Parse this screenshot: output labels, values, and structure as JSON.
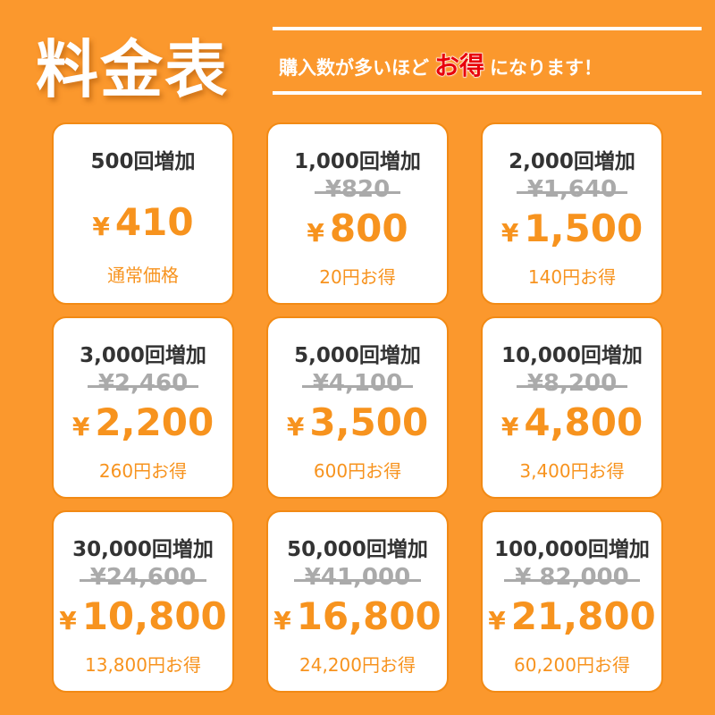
{
  "header": {
    "title": "料金表",
    "tagline_before": "購入数が多いほど",
    "tagline_highlight": "お得",
    "tagline_after": "になります！"
  },
  "colors": {
    "background": "#fb982d",
    "accent": "#f7931e",
    "highlight": "#e8000a",
    "strike": "#aaaaaa"
  },
  "plans": [
    {
      "qty": "500回増加",
      "old": "",
      "yen": "¥",
      "price": "410",
      "save": "通常価格"
    },
    {
      "qty": "1,000回増加",
      "old": "¥820",
      "yen": "¥",
      "price": "800",
      "save": "20円お得"
    },
    {
      "qty": "2,000回増加",
      "old": "¥1,640",
      "yen": "¥",
      "price": "1,500",
      "save": "140円お得"
    },
    {
      "qty": "3,000回増加",
      "old": "¥2,460",
      "yen": "¥",
      "price": "2,200",
      "save": "260円お得"
    },
    {
      "qty": "5,000回増加",
      "old": "¥4,100",
      "yen": "¥",
      "price": "3,500",
      "save": "600円お得"
    },
    {
      "qty": "10,000回増加",
      "old": "¥8,200",
      "yen": "¥",
      "price": "4,800",
      "save": "3,400円お得"
    },
    {
      "qty": "30,000回増加",
      "old": "¥24,600",
      "yen": "¥",
      "price": "10,800",
      "save": "13,800円お得"
    },
    {
      "qty": "50,000回増加",
      "old": "¥41,000",
      "yen": "¥",
      "price": "16,800",
      "save": "24,200円お得"
    },
    {
      "qty": "100,000回増加",
      "old": "¥ 82,000",
      "yen": "¥",
      "price": "21,800",
      "save": "60,200円お得"
    }
  ]
}
